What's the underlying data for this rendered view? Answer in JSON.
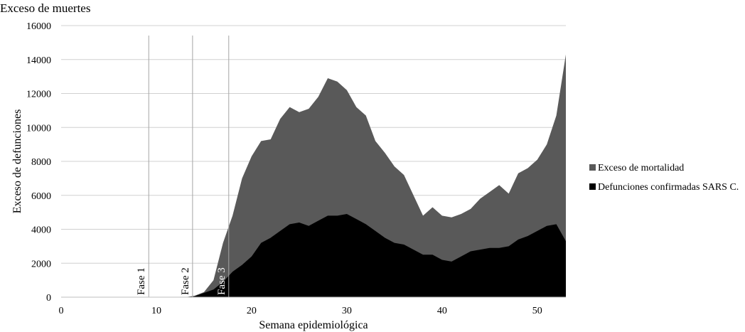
{
  "chart_data": {
    "type": "area",
    "title": "Exceso de muertes",
    "xlabel": "Semana epidemiológica",
    "ylabel": "Exceso de defunciones",
    "xlim": [
      0,
      53
    ],
    "ylim": [
      0,
      16000
    ],
    "xticks": [
      0,
      10,
      20,
      30,
      40,
      50
    ],
    "yticks": [
      0,
      2000,
      4000,
      6000,
      8000,
      10000,
      12000,
      14000,
      16000
    ],
    "grid": "horizontal",
    "legend_position": "right",
    "x": [
      13,
      14,
      15,
      16,
      17,
      18,
      19,
      20,
      21,
      22,
      23,
      24,
      25,
      26,
      27,
      28,
      29,
      30,
      31,
      32,
      33,
      34,
      35,
      36,
      37,
      38,
      39,
      40,
      41,
      42,
      43,
      44,
      45,
      46,
      47,
      48,
      49,
      50,
      51,
      52,
      53
    ],
    "series": [
      {
        "name": "Exceso de mortalidad",
        "color": "#595959",
        "values": [
          0,
          80,
          300,
          1000,
          3200,
          4800,
          7000,
          8300,
          9200,
          9300,
          10500,
          11200,
          10900,
          11100,
          11800,
          12900,
          12700,
          12200,
          11200,
          10700,
          9200,
          8500,
          7700,
          7200,
          6000,
          4800,
          5300,
          4800,
          4700,
          4900,
          5200,
          5800,
          6200,
          6600,
          6100,
          7300,
          7600,
          8100,
          9000,
          10700,
          14300
        ]
      },
      {
        "name": "Defunciones confirmadas SARS C.",
        "color": "#000000",
        "values": [
          0,
          50,
          250,
          450,
          900,
          1500,
          1900,
          2400,
          3200,
          3500,
          3900,
          4300,
          4400,
          4200,
          4500,
          4800,
          4800,
          4900,
          4600,
          4300,
          3900,
          3500,
          3200,
          3100,
          2800,
          2500,
          2500,
          2200,
          2100,
          2400,
          2700,
          2800,
          2900,
          2900,
          3000,
          3400,
          3600,
          3900,
          4200,
          4300,
          3300
        ]
      }
    ],
    "annotations": [
      {
        "label": "Fase 1",
        "x": 9.2
      },
      {
        "label": "Fase 2",
        "x": 13.8
      },
      {
        "label": "Fase 3",
        "x": 17.6
      }
    ]
  }
}
